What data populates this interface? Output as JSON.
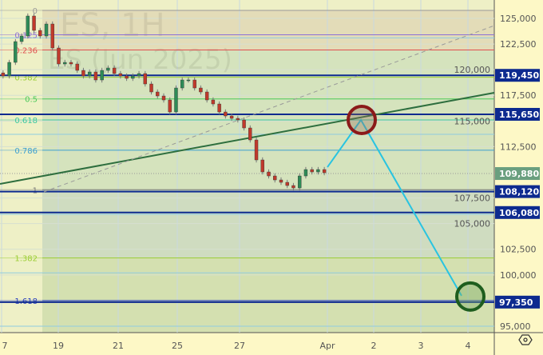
{
  "symbol": {
    "title": "ES, 1H",
    "subtitle": "ES (Jun 2025)"
  },
  "price_axis": {
    "ticks": [
      "125,000",
      "122,500",
      "120,000",
      "117,500",
      "115,000",
      "112,500",
      "107,500",
      "105,000",
      "102,500",
      "100,000",
      "95,000"
    ],
    "tick_values": [
      125000,
      122500,
      120000,
      117500,
      115000,
      112500,
      107500,
      105000,
      102500,
      100000,
      95000
    ],
    "settings_icon": "gear-icon"
  },
  "time_axis": {
    "labels": [
      "7",
      "19",
      "21",
      "25",
      "27",
      "Apr",
      "2",
      "3",
      "4"
    ]
  },
  "price_tags": [
    {
      "label": "119,450",
      "value": 119450,
      "color": "#0d2a8f"
    },
    {
      "label": "115,650",
      "value": 115650,
      "color": "#0d2a8f"
    },
    {
      "label": "109,880",
      "value": 109880,
      "color": "#6a9f7f"
    },
    {
      "label": "108,120",
      "value": 108120,
      "color": "#0d2a8f"
    },
    {
      "label": "106,080",
      "value": 106080,
      "color": "#0d2a8f"
    },
    {
      "label": "97,350",
      "value": 97350,
      "color": "#0d2a8f"
    }
  ],
  "fib_levels": [
    {
      "label": "0",
      "value": 125780,
      "color": "#999999"
    },
    {
      "label": "0.125",
      "value": 123400,
      "color": "#8c6fd6"
    },
    {
      "label": "0.236",
      "value": 121920,
      "color": "#e05050"
    },
    {
      "label": "0.382",
      "value": 119260,
      "color": "#9acd32"
    },
    {
      "label": "0.5",
      "value": 117150,
      "color": "#4cc95a"
    },
    {
      "label": "0.618",
      "value": 115100,
      "color": "#3cc8a0"
    },
    {
      "label": "0.786",
      "value": 112150,
      "color": "#3c9fd0"
    },
    {
      "label": "1",
      "value": 108300,
      "color": "#777777"
    },
    {
      "label": "1.382",
      "value": 101650,
      "color": "#9acd32"
    },
    {
      "label": "1.618",
      "value": 97500,
      "color": "#2a3fbf"
    }
  ],
  "extra_levels": [
    123100,
    113700,
    105900,
    100200,
    95000
  ],
  "last_price": 109880,
  "closes": [
    119390,
    120713,
    122740,
    123285,
    125234,
    123830,
    123285,
    124454,
    122116,
    120557,
    120713,
    120557,
    119934,
    119390,
    119778,
    118999,
    119934,
    120168,
    119622,
    119390,
    119155,
    119390,
    119622,
    118609,
    117830,
    117440,
    117050,
    115881,
    118219,
    118999,
    118999,
    118219,
    117830,
    117050,
    116660,
    115881,
    115491,
    115258,
    115102,
    114323,
    113154,
    111206,
    110036,
    109646,
    109257,
    109023,
    108711,
    108478,
    109646,
    110270,
    110036,
    110270,
    109958
  ],
  "projection": {
    "points": [
      109880,
      115650,
      97350
    ],
    "target_high": 115650,
    "target_low": 97350
  },
  "colors": {
    "up": "#2e8b57",
    "down": "#c0392b",
    "trendline": "#2d6e3e",
    "projection": "#29c4e0",
    "resistance_circle": "#8b1a1a",
    "target_circle": "#1e5e1e"
  }
}
